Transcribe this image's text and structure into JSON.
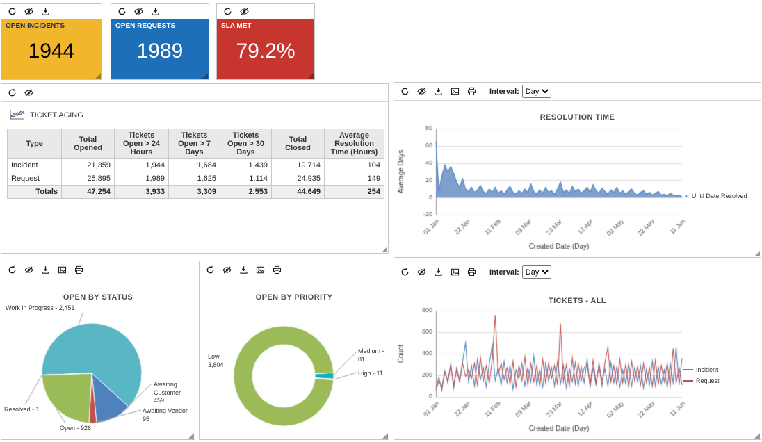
{
  "kpis": [
    {
      "label": "OPEN INCIDENTS",
      "value": "1944",
      "color": "#F2B62D",
      "title_color": "#1F2E54",
      "value_color": "#000000",
      "toolbar": [
        "refresh",
        "hide",
        "download"
      ]
    },
    {
      "label": "OPEN REQUESTS",
      "value": "1989",
      "color": "#1D6FB8",
      "title_color": "#FFFFFF",
      "value_color": "#FFFFFF",
      "toolbar": [
        "refresh",
        "hide",
        "download"
      ]
    },
    {
      "label": "SLA MET",
      "value": "79.2%",
      "color": "#C7362E",
      "title_color": "#FFFFFF",
      "value_color": "#FFFFFF",
      "toolbar": [
        "refresh",
        "hide"
      ]
    }
  ],
  "panels": {
    "ticket_aging": {
      "toolbar": [
        "refresh",
        "hide"
      ],
      "heading": "TICKET AGING"
    },
    "resolution": {
      "toolbar": [
        "refresh",
        "hide",
        "download",
        "export-image",
        "print"
      ]
    },
    "status": {
      "toolbar": [
        "refresh",
        "hide",
        "download",
        "export-image",
        "print"
      ]
    },
    "priority": {
      "toolbar": [
        "refresh",
        "hide",
        "download",
        "export-image",
        "print"
      ]
    },
    "tickets": {
      "toolbar": [
        "refresh",
        "hide",
        "download",
        "export-image",
        "print"
      ]
    }
  },
  "interval": {
    "label": "Interval:",
    "value": "Day"
  },
  "ticket_aging": {
    "columns": [
      "Type",
      "Total Opened",
      "Tickets Open > 24 Hours",
      "Tickets Open > 7 Days",
      "Tickets Open > 30 Days",
      "Total Closed",
      "Average Resolution Time (Hours)"
    ],
    "rows": [
      [
        "Incident",
        "21,359",
        "1,944",
        "1,684",
        "1,439",
        "19,714",
        "104"
      ],
      [
        "Request",
        "25,895",
        "1,989",
        "1,625",
        "1,114",
        "24,935",
        "149"
      ]
    ],
    "totals": [
      "Totals",
      "47,254",
      "3,933",
      "3,309",
      "2,553",
      "44,649",
      "254"
    ]
  },
  "chart_data": [
    {
      "id": "resolution_time",
      "type": "area",
      "title": "RESOLUTION TIME",
      "xlabel": "Created Date (Day)",
      "ylabel": "Average Days",
      "ylim": [
        -20,
        80
      ],
      "yticks": [
        -20,
        0,
        20,
        40,
        60,
        80
      ],
      "xticklabels": [
        "01 Jan",
        "22 Jan",
        "11 Feb",
        "03 Mar",
        "23 Mar",
        "12 Apr",
        "02 May",
        "22 May",
        "11 Jun"
      ],
      "legend_position": "right",
      "legend": [
        {
          "label": "Until Date Resolved",
          "color": "#4f81bd",
          "marker": "triangle"
        }
      ],
      "series": [
        {
          "name": "Until Date Resolved",
          "color": "#4f81bd",
          "fill": "rgba(95,135,193,0.8)",
          "values": [
            65,
            8,
            25,
            38,
            30,
            36,
            28,
            18,
            12,
            22,
            10,
            7,
            12,
            6,
            9,
            14,
            7,
            5,
            10,
            6,
            12,
            5,
            8,
            4,
            9,
            13,
            6,
            4,
            8,
            5,
            10,
            6,
            16,
            7,
            4,
            9,
            5,
            12,
            6,
            8,
            4,
            10,
            18,
            6,
            9,
            5,
            13,
            7,
            10,
            5,
            8,
            12,
            6,
            15,
            8,
            5,
            11,
            7,
            4,
            9,
            6,
            12,
            5,
            8,
            4,
            7,
            10,
            5,
            3,
            6,
            8,
            4,
            6,
            3,
            5,
            7,
            3,
            4,
            2,
            5,
            3,
            2,
            3,
            1
          ]
        }
      ]
    },
    {
      "id": "open_by_status",
      "type": "pie",
      "title": "OPEN BY STATUS",
      "start_deg": 178,
      "slices": [
        {
          "label": "Work in Progress",
          "value": 2451,
          "color": "#58b6c5",
          "display": "Work in Progress - 2,451"
        },
        {
          "label": "Awaiting Customer",
          "value": 459,
          "color": "#4f81bd",
          "display": "Awaiting Customer - 459"
        },
        {
          "label": "Awaiting Vendor",
          "value": 95,
          "color": "#c0504d",
          "display": "Awaiting Vendor - 95"
        },
        {
          "label": "Open",
          "value": 926,
          "color": "#9bbb59",
          "display": "Open - 926"
        },
        {
          "label": "Resolved",
          "value": 1,
          "color": "#34495e",
          "display": "Resolved - 1"
        }
      ]
    },
    {
      "id": "open_by_priority",
      "type": "donut",
      "title": "OPEN BY PRIORITY",
      "start_deg": -4,
      "slices": [
        {
          "label": "Medium",
          "value": 81,
          "color": "#0eb3ba",
          "display": "Medium - 81"
        },
        {
          "label": "High",
          "value": 11,
          "color": "#c0504d",
          "display": "High - 11"
        },
        {
          "label": "Low",
          "value": 3804,
          "color": "#9bbb59",
          "display": "Low - 3,804"
        }
      ]
    },
    {
      "id": "tickets_all",
      "type": "line",
      "title": "TICKETS - ALL",
      "xlabel": "Created Date (Day)",
      "ylabel": "Count",
      "ylim": [
        0,
        800
      ],
      "yticks": [
        0,
        200,
        400,
        600,
        800
      ],
      "xticklabels": [
        "01 Jan",
        "22 Jan",
        "11 Feb",
        "03 Mar",
        "23 Mar",
        "12 Apr",
        "02 May",
        "22 May",
        "11 Jun"
      ],
      "legend_position": "right",
      "legend": [
        {
          "label": "Incident",
          "color": "#4f81bd"
        },
        {
          "label": "Request",
          "color": "#c0504d"
        }
      ],
      "series": [
        {
          "name": "Incident",
          "color": "#4f81bd",
          "values": [
            90,
            180,
            60,
            240,
            130,
            310,
            80,
            270,
            150,
            330,
            500,
            140,
            290,
            100,
            350,
            160,
            270,
            90,
            310,
            480,
            150,
            270,
            110,
            330,
            130,
            290,
            70,
            250,
            170,
            310,
            100,
            270,
            140,
            380,
            110,
            250,
            90,
            310,
            150,
            270,
            100,
            330,
            120,
            290,
            80,
            260,
            140,
            320,
            100,
            280,
            130,
            350,
            90,
            270,
            110,
            310,
            150,
            260,
            100,
            320,
            130,
            280,
            90,
            250,
            120,
            310,
            100,
            270,
            140,
            290,
            80,
            260,
            110,
            330,
            100,
            280,
            120,
            250,
            90,
            310,
            130,
            460,
            110,
            360
          ]
        },
        {
          "name": "Request",
          "color": "#c0504d",
          "values": [
            60,
            150,
            90,
            230,
            150,
            290,
            110,
            250,
            140,
            310,
            190,
            250,
            170,
            310,
            110,
            370,
            150,
            290,
            130,
            350,
            760,
            210,
            310,
            160,
            270,
            120,
            330,
            90,
            290,
            150,
            370,
            110,
            310,
            140,
            290,
            100,
            350,
            130,
            310,
            170,
            290,
            110,
            680,
            140,
            300,
            100,
            360,
            120,
            310,
            150,
            270,
            300,
            110,
            340,
            130,
            290,
            100,
            320,
            460,
            140,
            290,
            110,
            350,
            130,
            300,
            90,
            330,
            150,
            280,
            110,
            310,
            130,
            270,
            100,
            340,
            120,
            290,
            140,
            310,
            100,
            450,
            130,
            270,
            110
          ]
        }
      ]
    }
  ]
}
